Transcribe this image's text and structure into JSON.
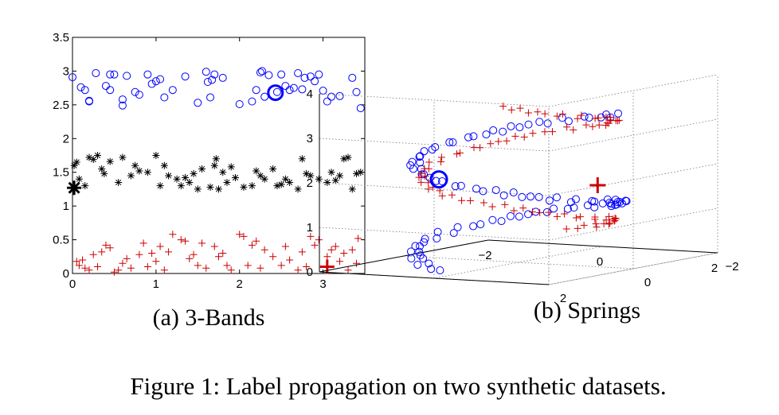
{
  "caption": "Figure 1: Label propagation on two synthetic datasets.",
  "chart_data": [
    {
      "type": "scatter",
      "subcaption": "(a) 3-Bands",
      "xlim": [
        0,
        3.5
      ],
      "ylim": [
        0,
        3.5
      ],
      "x_ticks": [
        "0",
        "1",
        "2",
        "3"
      ],
      "y_ticks": [
        "0",
        "0.5",
        "1",
        "1.5",
        "2",
        "2.5",
        "3",
        "3.5"
      ],
      "grid": false,
      "series": [
        {
          "marker": "circle",
          "color": "#0000ff",
          "points": [
            [
              0.0,
              2.91
            ],
            [
              0.1,
              2.76
            ],
            [
              0.15,
              2.72
            ],
            [
              0.2,
              2.56
            ],
            [
              0.2,
              2.55
            ],
            [
              0.28,
              2.97
            ],
            [
              0.45,
              2.95
            ],
            [
              0.4,
              2.78
            ],
            [
              0.45,
              2.72
            ],
            [
              0.5,
              2.95
            ],
            [
              0.6,
              2.58
            ],
            [
              0.6,
              2.49
            ],
            [
              0.65,
              2.93
            ],
            [
              0.75,
              2.69
            ],
            [
              0.8,
              2.65
            ],
            [
              0.9,
              2.95
            ],
            [
              0.95,
              2.81
            ],
            [
              1.0,
              2.85
            ],
            [
              1.05,
              2.88
            ],
            [
              1.1,
              2.61
            ],
            [
              1.2,
              2.72
            ],
            [
              1.35,
              2.92
            ],
            [
              1.5,
              2.53
            ],
            [
              1.6,
              2.99
            ],
            [
              1.62,
              2.84
            ],
            [
              1.65,
              2.61
            ],
            [
              1.67,
              2.87
            ],
            [
              1.7,
              2.95
            ],
            [
              1.8,
              2.9
            ],
            [
              2.0,
              2.51
            ],
            [
              2.15,
              2.55
            ],
            [
              2.2,
              2.72
            ],
            [
              2.25,
              2.98
            ],
            [
              2.27,
              3.0
            ],
            [
              2.3,
              2.62
            ],
            [
              2.35,
              2.94
            ],
            [
              2.45,
              2.69
            ],
            [
              2.5,
              2.95
            ],
            [
              2.55,
              2.78
            ],
            [
              2.6,
              2.72
            ],
            [
              2.65,
              2.75
            ],
            [
              2.7,
              2.97
            ],
            [
              2.75,
              2.73
            ],
            [
              2.78,
              2.9
            ],
            [
              2.85,
              2.92
            ],
            [
              2.9,
              2.85
            ],
            [
              2.95,
              2.95
            ],
            [
              3.0,
              2.71
            ],
            [
              3.05,
              2.55
            ],
            [
              3.1,
              2.62
            ],
            [
              3.2,
              2.63
            ],
            [
              3.35,
              2.9
            ],
            [
              3.4,
              2.69
            ],
            [
              3.45,
              2.45
            ]
          ]
        },
        {
          "marker": "asterisk",
          "color": "#000000",
          "points": [
            [
              0.02,
              1.6
            ],
            [
              0.05,
              1.65
            ],
            [
              0.08,
              1.4
            ],
            [
              0.15,
              1.3
            ],
            [
              0.2,
              1.72
            ],
            [
              0.25,
              1.69
            ],
            [
              0.3,
              1.75
            ],
            [
              0.35,
              1.55
            ],
            [
              0.38,
              1.48
            ],
            [
              0.45,
              1.66
            ],
            [
              0.55,
              1.35
            ],
            [
              0.6,
              1.72
            ],
            [
              0.7,
              1.45
            ],
            [
              0.75,
              1.6
            ],
            [
              0.8,
              1.52
            ],
            [
              0.9,
              1.5
            ],
            [
              1.0,
              1.75
            ],
            [
              1.05,
              1.3
            ],
            [
              1.1,
              1.6
            ],
            [
              1.15,
              1.45
            ],
            [
              1.25,
              1.4
            ],
            [
              1.3,
              1.3
            ],
            [
              1.35,
              1.42
            ],
            [
              1.4,
              1.35
            ],
            [
              1.45,
              1.48
            ],
            [
              1.5,
              1.25
            ],
            [
              1.55,
              1.55
            ],
            [
              1.65,
              1.28
            ],
            [
              1.7,
              1.6
            ],
            [
              1.72,
              1.7
            ],
            [
              1.75,
              1.25
            ],
            [
              1.8,
              1.5
            ],
            [
              1.85,
              1.35
            ],
            [
              1.9,
              1.58
            ],
            [
              1.95,
              1.42
            ],
            [
              2.05,
              1.28
            ],
            [
              2.15,
              1.3
            ],
            [
              2.2,
              1.52
            ],
            [
              2.25,
              1.45
            ],
            [
              2.3,
              1.4
            ],
            [
              2.4,
              1.55
            ],
            [
              2.45,
              1.3
            ],
            [
              2.5,
              1.32
            ],
            [
              2.55,
              1.4
            ],
            [
              2.6,
              1.35
            ],
            [
              2.7,
              1.25
            ],
            [
              2.75,
              1.7
            ],
            [
              2.8,
              1.48
            ],
            [
              2.85,
              1.45
            ],
            [
              2.95,
              1.4
            ],
            [
              3.05,
              1.35
            ],
            [
              3.1,
              1.5
            ],
            [
              3.15,
              1.38
            ],
            [
              3.2,
              1.45
            ],
            [
              3.25,
              1.7
            ],
            [
              3.3,
              1.72
            ],
            [
              3.35,
              1.25
            ],
            [
              3.4,
              1.48
            ],
            [
              3.45,
              1.5
            ]
          ]
        },
        {
          "marker": "plus",
          "color": "#cc0000",
          "points": [
            [
              0.05,
              0.18
            ],
            [
              0.08,
              0.12
            ],
            [
              0.12,
              0.2
            ],
            [
              0.15,
              0.08
            ],
            [
              0.2,
              0.05
            ],
            [
              0.25,
              0.28
            ],
            [
              0.3,
              0.1
            ],
            [
              0.35,
              0.32
            ],
            [
              0.4,
              0.42
            ],
            [
              0.45,
              0.38
            ],
            [
              0.5,
              0.02
            ],
            [
              0.55,
              0.05
            ],
            [
              0.6,
              0.15
            ],
            [
              0.65,
              0.22
            ],
            [
              0.7,
              0.08
            ],
            [
              0.8,
              0.28
            ],
            [
              0.85,
              0.45
            ],
            [
              0.9,
              0.1
            ],
            [
              0.95,
              0.3
            ],
            [
              1.0,
              0.18
            ],
            [
              1.05,
              0.4
            ],
            [
              1.1,
              0.05
            ],
            [
              1.15,
              0.32
            ],
            [
              1.2,
              0.58
            ],
            [
              1.3,
              0.5
            ],
            [
              1.35,
              0.48
            ],
            [
              1.4,
              0.22
            ],
            [
              1.45,
              0.28
            ],
            [
              1.5,
              0.12
            ],
            [
              1.55,
              0.45
            ],
            [
              1.6,
              0.08
            ],
            [
              1.7,
              0.4
            ],
            [
              1.75,
              0.25
            ],
            [
              1.8,
              0.3
            ],
            [
              1.85,
              0.12
            ],
            [
              1.9,
              0.05
            ],
            [
              2.0,
              0.58
            ],
            [
              2.05,
              0.55
            ],
            [
              2.1,
              0.12
            ],
            [
              2.15,
              0.42
            ],
            [
              2.2,
              0.48
            ],
            [
              2.25,
              0.08
            ],
            [
              2.3,
              0.35
            ],
            [
              2.4,
              0.25
            ],
            [
              2.5,
              0.12
            ],
            [
              2.55,
              0.4
            ],
            [
              2.6,
              0.2
            ],
            [
              2.7,
              0.05
            ],
            [
              2.75,
              0.32
            ],
            [
              2.8,
              0.1
            ],
            [
              2.85,
              0.55
            ],
            [
              2.9,
              0.42
            ],
            [
              2.95,
              0.5
            ],
            [
              3.05,
              0.25
            ],
            [
              3.1,
              0.35
            ],
            [
              3.15,
              0.4
            ],
            [
              3.2,
              0.18
            ],
            [
              3.25,
              0.3
            ],
            [
              3.3,
              0.05
            ],
            [
              3.35,
              0.35
            ],
            [
              3.4,
              0.15
            ],
            [
              3.42,
              0.52
            ]
          ]
        }
      ],
      "highlighted": [
        {
          "marker": "circle",
          "color": "#0000ff",
          "x": 2.43,
          "y": 2.68
        },
        {
          "marker": "asterisk",
          "color": "#000000",
          "x": 0.02,
          "y": 1.27
        },
        {
          "marker": "plus",
          "color": "#cc0000",
          "x": 3.05,
          "y": 0.1
        }
      ]
    },
    {
      "type": "scatter",
      "subcaption": "(b) Springs",
      "xlim": [
        -2,
        2
      ],
      "ylim": [
        -2,
        2
      ],
      "zlim": [
        0,
        4
      ],
      "x_ticks": [
        "-2",
        "0",
        "2"
      ],
      "y_ticks": [
        "-2",
        "0",
        "2"
      ],
      "z_ticks": [
        "0",
        "1",
        "2",
        "3",
        "4"
      ],
      "grid": true,
      "series": [
        {
          "marker": "circle",
          "color": "#0000ff",
          "helix": {
            "turns": 1.55,
            "z_range": [
              0.05,
              3.15
            ],
            "start_angle": 1.8,
            "radius": 1.45,
            "count": 95
          }
        },
        {
          "marker": "plus",
          "color": "#cc0000",
          "helix": {
            "turns": 1.45,
            "z_range": [
              0.5,
              3.75
            ],
            "start_angle": 4.6,
            "radius": 1.35,
            "count": 85
          }
        }
      ],
      "highlighted": [
        {
          "marker": "circle",
          "color": "#0000ff",
          "x": -0.8,
          "y": 0.8,
          "z": 1.95
        },
        {
          "marker": "plus",
          "color": "#cc0000",
          "x": 1.6,
          "y": 0.3,
          "z": 1.9
        }
      ]
    }
  ]
}
